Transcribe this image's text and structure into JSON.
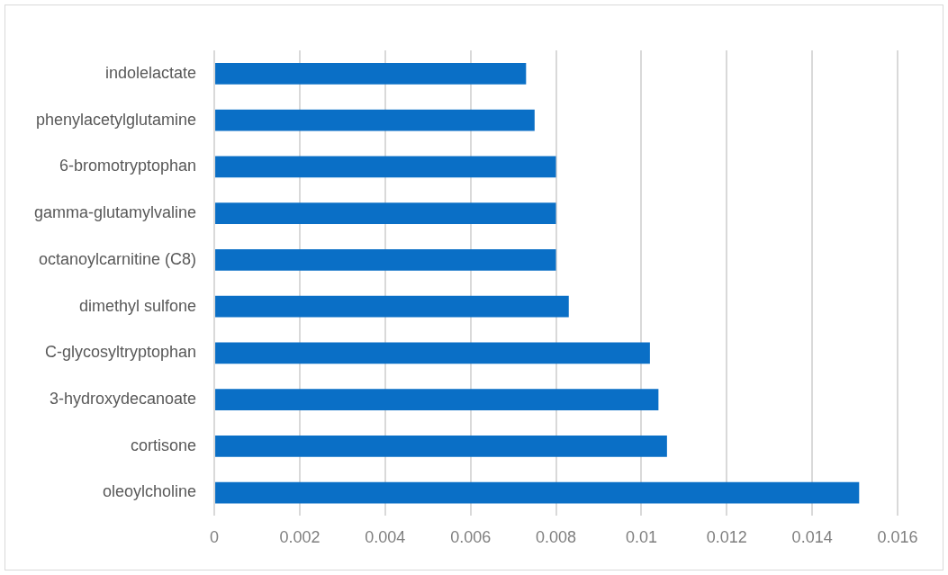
{
  "chart_data": {
    "type": "bar",
    "orientation": "horizontal",
    "categories": [
      "indolelactate",
      "phenylacetylglutamine",
      "6-bromotryptophan",
      "gamma-glutamylvaline",
      "octanoylcarnitine (C8)",
      "dimethyl sulfone",
      "C-glycosyltryptophan",
      "3-hydroxydecanoate",
      "cortisone",
      "oleoylcholine"
    ],
    "values": [
      0.0073,
      0.0075,
      0.008,
      0.008,
      0.008,
      0.0083,
      0.0102,
      0.0104,
      0.0106,
      0.0151
    ],
    "color": "#0a6fc6",
    "xlim": [
      0,
      0.016
    ],
    "xticks": [
      0,
      0.002,
      0.004,
      0.006,
      0.008,
      0.01,
      0.012,
      0.014,
      0.016
    ],
    "grid": "x",
    "legend": false
  }
}
